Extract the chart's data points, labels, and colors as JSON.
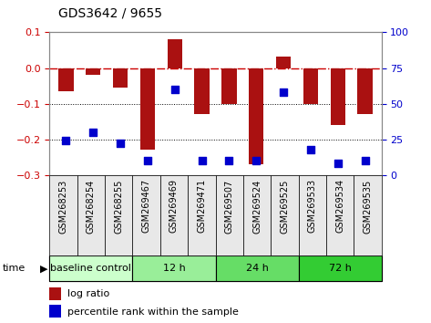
{
  "title": "GDS3642 / 9655",
  "samples": [
    "GSM268253",
    "GSM268254",
    "GSM268255",
    "GSM269467",
    "GSM269469",
    "GSM269471",
    "GSM269507",
    "GSM269524",
    "GSM269525",
    "GSM269533",
    "GSM269534",
    "GSM269535"
  ],
  "log_ratio": [
    -0.065,
    -0.02,
    -0.055,
    -0.23,
    0.08,
    -0.13,
    -0.1,
    -0.27,
    0.033,
    -0.1,
    -0.16,
    -0.13
  ],
  "percentile": [
    24,
    30,
    22,
    10,
    60,
    10,
    10,
    10,
    58,
    18,
    8,
    10
  ],
  "groups": [
    {
      "label": "baseline control",
      "start": 0,
      "end": 3,
      "color": "#ccffcc"
    },
    {
      "label": "12 h",
      "start": 3,
      "end": 6,
      "color": "#99ee99"
    },
    {
      "label": "24 h",
      "start": 6,
      "end": 9,
      "color": "#66dd66"
    },
    {
      "label": "72 h",
      "start": 9,
      "end": 12,
      "color": "#33cc33"
    }
  ],
  "bar_color": "#aa1111",
  "dot_color": "#0000cc",
  "ylim_left": [
    -0.3,
    0.1
  ],
  "ylim_right": [
    0,
    100
  ],
  "yticks_left": [
    -0.3,
    -0.2,
    -0.1,
    0.0,
    0.1
  ],
  "yticks_right": [
    0,
    25,
    50,
    75,
    100
  ],
  "hline_zero_color": "#cc0000",
  "hline_zero_style": "-.",
  "hline_m01_color": "black",
  "hline_m01_style": ":",
  "hline_m02_color": "black",
  "hline_m02_style": ":",
  "bar_width": 0.55,
  "dot_size": 35,
  "time_label": "time",
  "legend_log_ratio": "log ratio",
  "legend_percentile": "percentile rank within the sample",
  "tick_label_size": 7,
  "title_fontsize": 10
}
